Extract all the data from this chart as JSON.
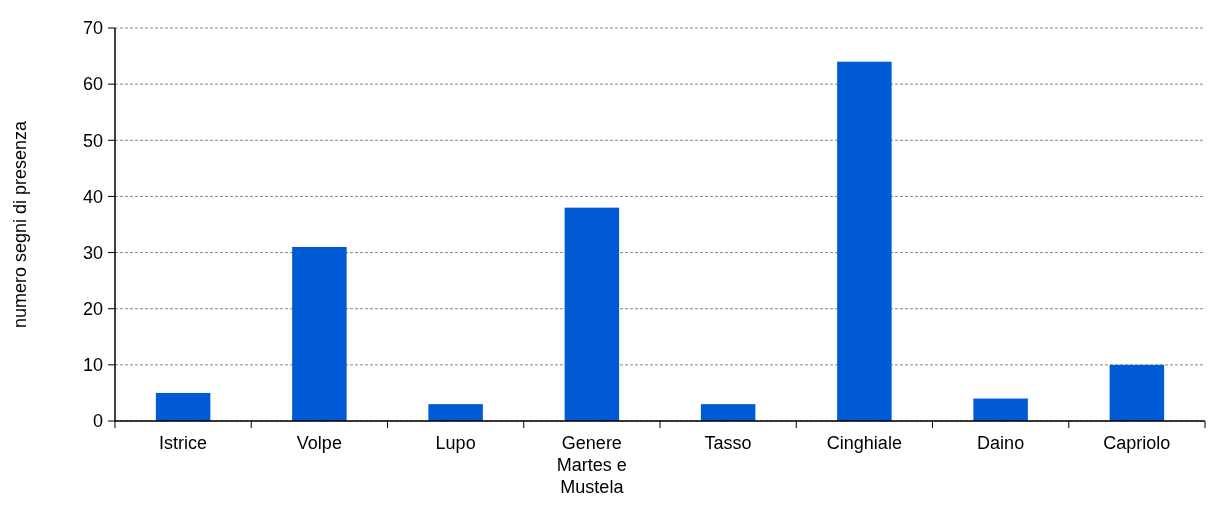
{
  "chart_data": {
    "type": "bar",
    "ylabel": "numero segni di presenza",
    "categories": [
      "Istrice",
      "Volpe",
      "Lupo",
      "Genere Martes e Mustela",
      "Tasso",
      "Cinghiale",
      "Daino",
      "Capriolo"
    ],
    "values": [
      5,
      31,
      3,
      38,
      3,
      64,
      4,
      10
    ],
    "color": "#005ad6",
    "ylim": [
      0,
      70
    ],
    "yticks": [
      0,
      10,
      20,
      30,
      40,
      50,
      60,
      70
    ],
    "grid": "y"
  }
}
